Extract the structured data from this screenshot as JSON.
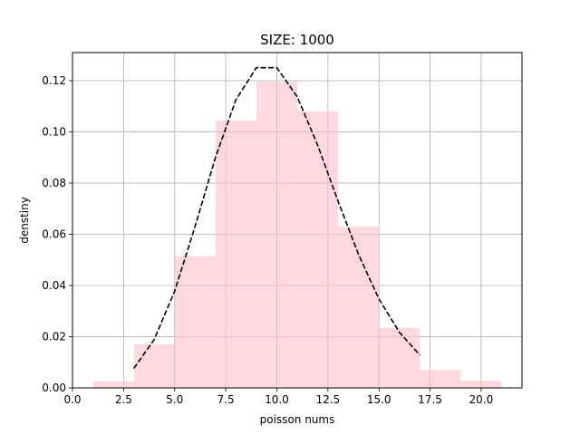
{
  "chart_data": {
    "type": "bar",
    "title": "SIZE: 1000",
    "xlabel": "poisson nums",
    "ylabel": "denstiny",
    "xlim": [
      0,
      22
    ],
    "ylim": [
      0,
      0.131
    ],
    "xticks": [
      0.0,
      2.5,
      5.0,
      7.5,
      10.0,
      12.5,
      15.0,
      17.5,
      20.0
    ],
    "xtick_labels": [
      "0.0",
      "2.5",
      "5.0",
      "7.5",
      "10.0",
      "12.5",
      "15.0",
      "17.5",
      "20.0"
    ],
    "yticks": [
      0.0,
      0.02,
      0.04,
      0.06,
      0.08,
      0.1,
      0.12
    ],
    "ytick_labels": [
      "0.00",
      "0.02",
      "0.04",
      "0.06",
      "0.08",
      "0.10",
      "0.12"
    ],
    "grid": true,
    "histogram": {
      "color": "#ffc0cb",
      "alpha": 0.6,
      "bins": [
        {
          "x0": 1,
          "x1": 3,
          "density": 0.0025
        },
        {
          "x0": 3,
          "x1": 5,
          "density": 0.017
        },
        {
          "x0": 5,
          "x1": 7,
          "density": 0.0515
        },
        {
          "x0": 7,
          "x1": 9,
          "density": 0.1045
        },
        {
          "x0": 9,
          "x1": 11,
          "density": 0.1195
        },
        {
          "x0": 11,
          "x1": 13,
          "density": 0.108
        },
        {
          "x0": 13,
          "x1": 15,
          "density": 0.063
        },
        {
          "x0": 15,
          "x1": 17,
          "density": 0.0235
        },
        {
          "x0": 17,
          "x1": 19,
          "density": 0.007
        },
        {
          "x0": 19,
          "x1": 21,
          "density": 0.0028
        }
      ]
    },
    "pmf_line": {
      "color": "#000000",
      "style": "dashed",
      "x": [
        3,
        4,
        5,
        6,
        7,
        8,
        9,
        10,
        11,
        12,
        13,
        14,
        15,
        16,
        17
      ],
      "y": [
        0.0076,
        0.0189,
        0.0378,
        0.0631,
        0.0901,
        0.1126,
        0.1251,
        0.1251,
        0.1137,
        0.0948,
        0.0729,
        0.0521,
        0.0347,
        0.0217,
        0.0128
      ]
    }
  }
}
